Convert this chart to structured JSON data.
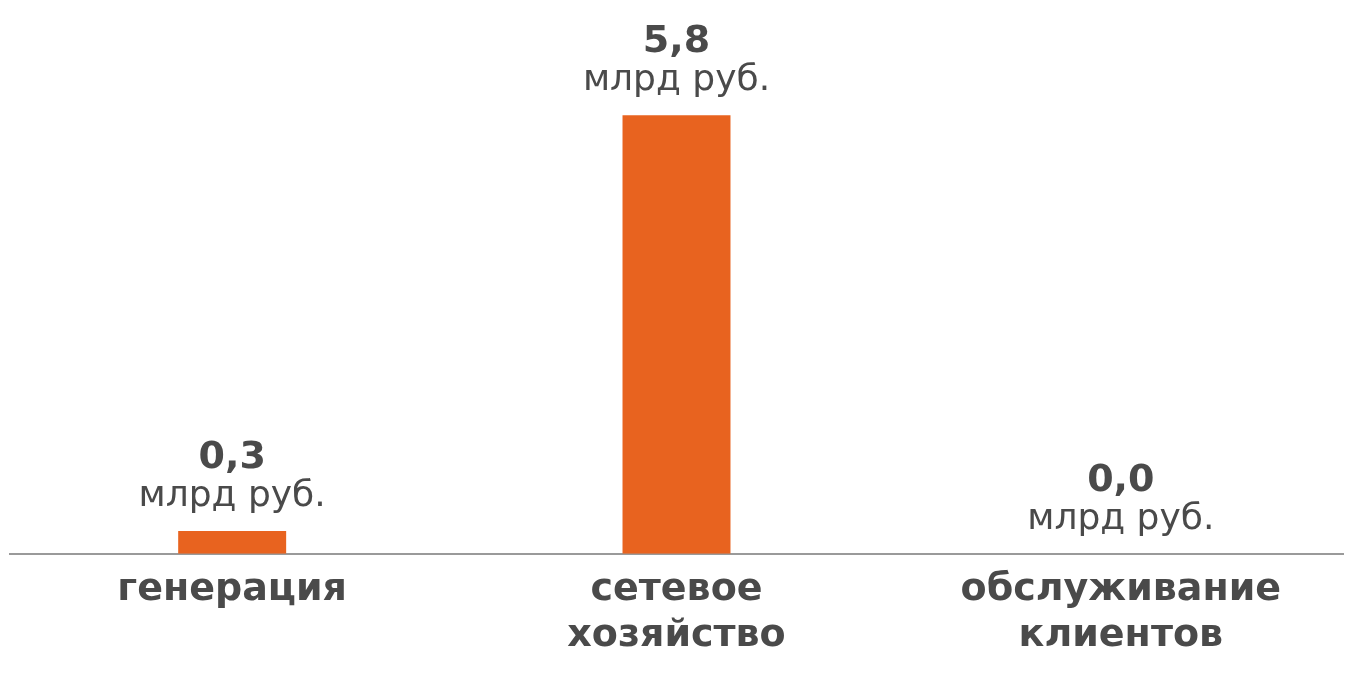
{
  "chart_data": {
    "type": "bar",
    "categories": [
      "генерация",
      "сетевое хозяйство",
      "обслуживание клиентов"
    ],
    "values": [
      0.3,
      5.8,
      0.0
    ],
    "color": "#e8631f",
    "value_labels": [
      "0,3 млрд руб.",
      "5,8 млрд руб.",
      "0,0 млрд руб."
    ],
    "grid": false,
    "legend": false
  }
}
